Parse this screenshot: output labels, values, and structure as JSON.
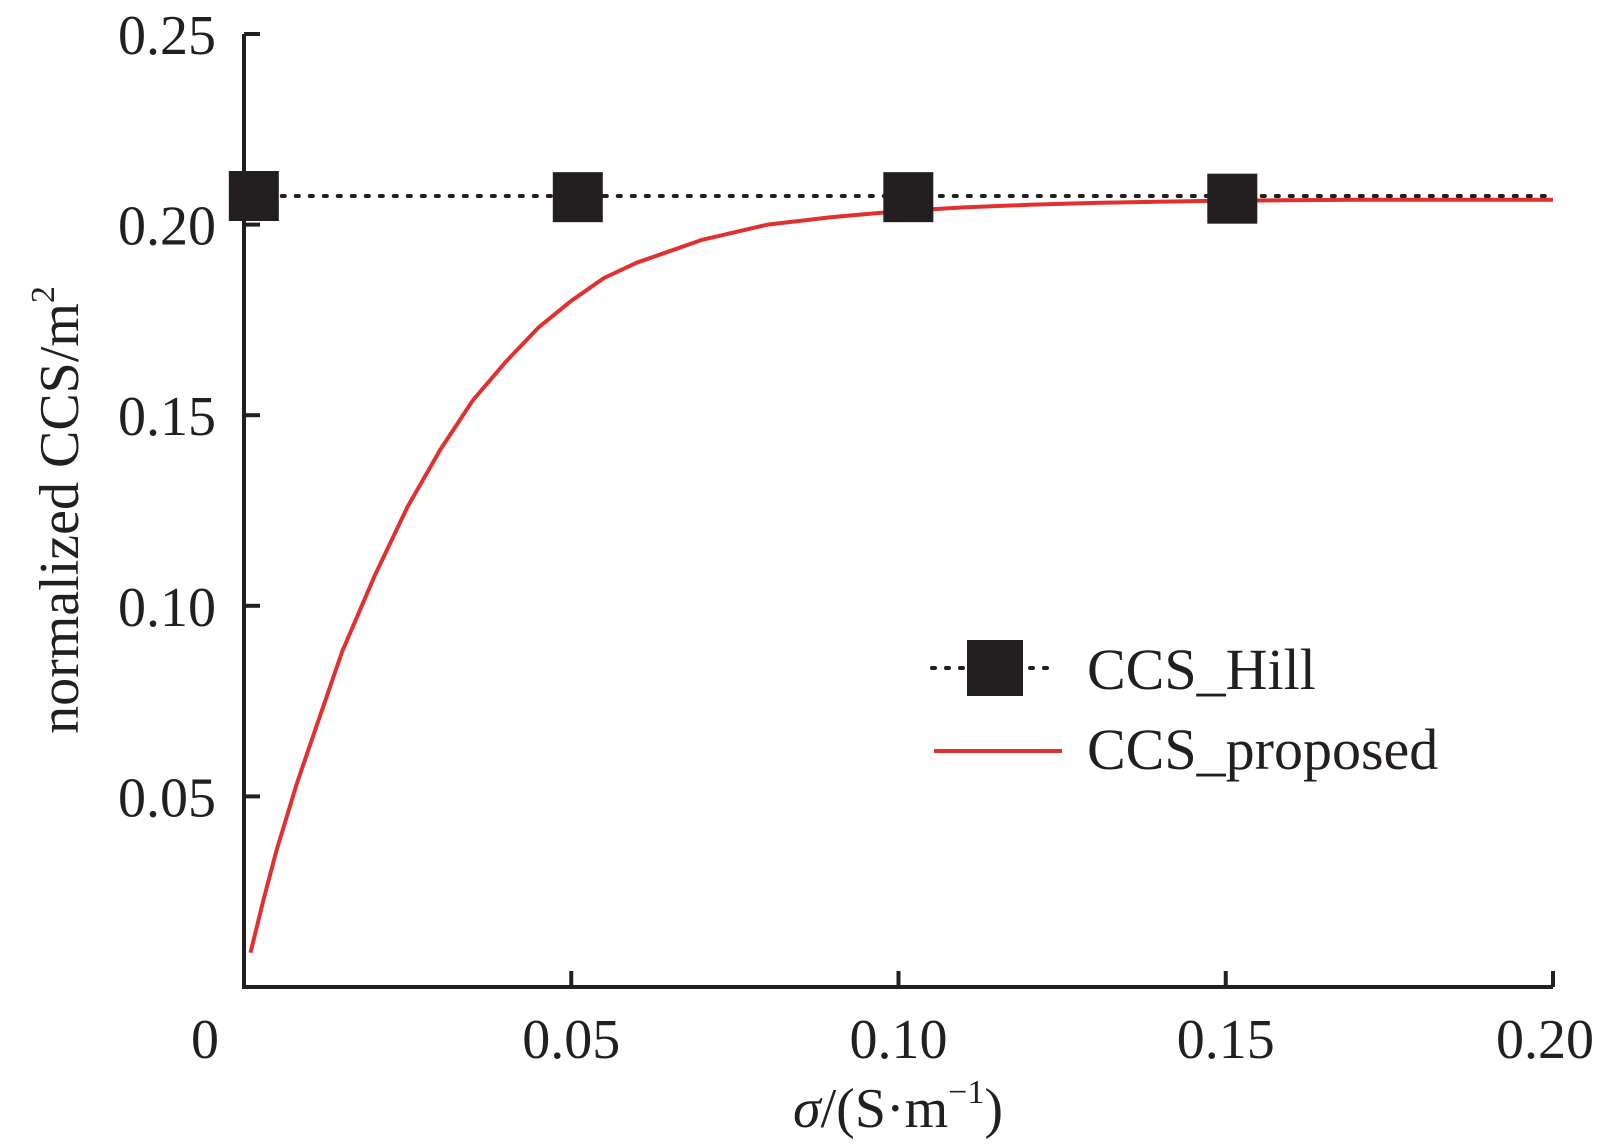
{
  "chart_data": {
    "type": "line",
    "xlabel": {
      "symbol": "σ",
      "unit_open": "/(S·m",
      "unit_exp": "−1",
      "unit_close": ")"
    },
    "ylabel": {
      "text": "normalized CCS/m",
      "exp": "2"
    },
    "xlim": [
      0,
      0.2
    ],
    "ylim": [
      0,
      0.25
    ],
    "x_ticks": [
      {
        "value": 0,
        "label": "0"
      },
      {
        "value": 0.05,
        "label": "0.05"
      },
      {
        "value": 0.1,
        "label": "0.10"
      },
      {
        "value": 0.15,
        "label": "0.15"
      },
      {
        "value": 0.2,
        "label": "0.20"
      }
    ],
    "y_ticks": [
      {
        "value": 0.05,
        "label": "0.05"
      },
      {
        "value": 0.1,
        "label": "0.10"
      },
      {
        "value": 0.15,
        "label": "0.15"
      },
      {
        "value": 0.2,
        "label": "0.20"
      },
      {
        "value": 0.25,
        "label": "0.25"
      }
    ],
    "grid": false,
    "legend_position": "center-right",
    "series": [
      {
        "name": "CCS_Hill",
        "color": "#231f20",
        "line_style": "dotted",
        "marker": "square",
        "x": [
          0.0015,
          0.051,
          0.1015,
          0.151
        ],
        "y": [
          0.2075,
          0.2072,
          0.2072,
          0.2068
        ]
      },
      {
        "name": "CCS_proposed",
        "color": "#e03030",
        "line_style": "solid",
        "marker": "none",
        "x": [
          0.001,
          0.003,
          0.005,
          0.008,
          0.01,
          0.015,
          0.02,
          0.025,
          0.03,
          0.035,
          0.04,
          0.045,
          0.05,
          0.055,
          0.06,
          0.065,
          0.07,
          0.08,
          0.09,
          0.1,
          0.11,
          0.12,
          0.13,
          0.15,
          0.17,
          0.2
        ],
        "y": [
          0.009,
          0.023,
          0.036,
          0.053,
          0.063,
          0.088,
          0.108,
          0.126,
          0.141,
          0.154,
          0.164,
          0.173,
          0.18,
          0.186,
          0.19,
          0.193,
          0.196,
          0.2,
          0.202,
          0.2035,
          0.2045,
          0.2052,
          0.2057,
          0.2063,
          0.2065,
          0.2065
        ]
      }
    ]
  }
}
